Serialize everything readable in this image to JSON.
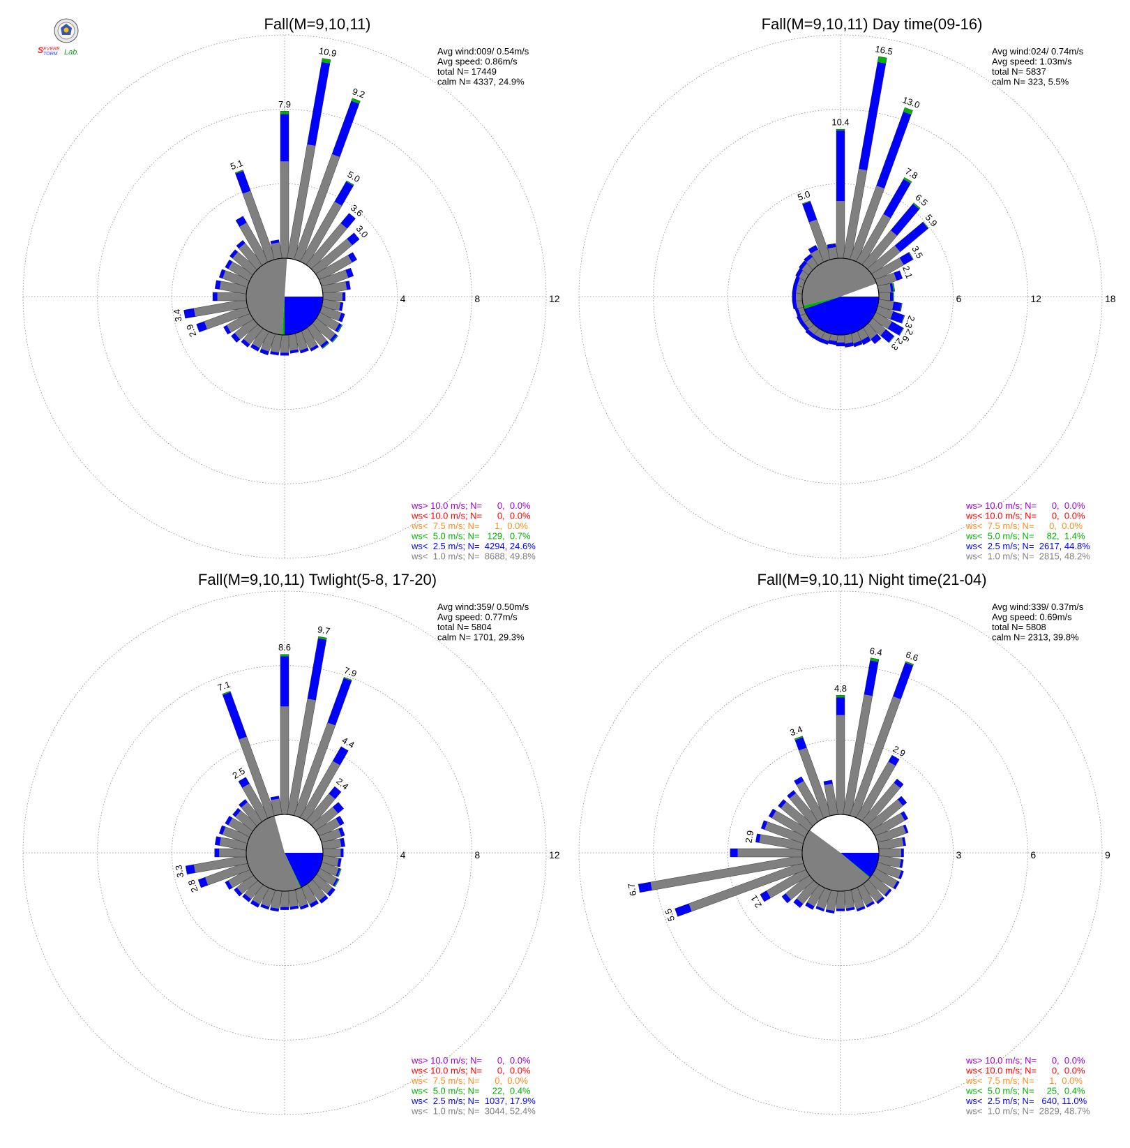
{
  "logo": {
    "lettering": "Severe Storm Lab."
  },
  "colors": {
    "ws_gt_10": "#9b00d8",
    "ws_lt_10": "#ff0000",
    "ws_lt_7_5": "#ff8c1a",
    "ws_lt_5": "#00b400",
    "ws_lt_2_5": "#0000ff",
    "ws_lt_1": "#808080"
  },
  "chart_data": [
    {
      "type": "windrose",
      "title": "Fall(M=9,10,11)",
      "rlim": [
        0,
        12
      ],
      "ring_labels": [
        "4",
        "8",
        "12"
      ],
      "stats": [
        "Avg wind:009/ 0.54m/s",
        "Avg speed: 0.86m/s",
        "total N=       17449",
        "calm N=    4337,  24.9%"
      ],
      "legend": [
        "ws> 10.0 m/s; N=      0,  0.0%",
        "ws< 10.0 m/s; N=      0,  0.0%",
        "ws<  7.5 m/s; N=      1,  0.0%",
        "ws<  5.0 m/s; N=   129,  0.7%",
        "ws<  2.5 m/s; N=  4294, 24.6%",
        "ws<  1.0 m/s; N=  8688, 49.8%"
      ],
      "calm_share": {
        "gray": 0.5,
        "blue": 0.25,
        "green": 0.01
      },
      "directions": [
        0,
        10,
        20,
        30,
        40,
        50,
        60,
        70,
        80,
        90,
        100,
        110,
        120,
        130,
        140,
        150,
        160,
        170,
        180,
        190,
        200,
        210,
        220,
        230,
        240,
        250,
        260,
        270,
        280,
        290,
        300,
        310,
        320,
        330,
        340,
        350
      ],
      "totals": [
        7.9,
        10.9,
        9.2,
        5.0,
        3.6,
        3.0,
        2.3,
        1.8,
        1.5,
        1.2,
        1.1,
        1.3,
        1.4,
        1.5,
        1.4,
        1.2,
        1.1,
        1.0,
        1.1,
        1.1,
        1.2,
        1.2,
        1.3,
        1.5,
        1.6,
        2.9,
        3.4,
        1.8,
        1.7,
        1.6,
        1.5,
        1.6,
        1.7,
        2.8,
        5.1,
        1.0
      ],
      "gray": [
        5.2,
        6.2,
        6.0,
        3.7,
        2.9,
        2.5,
        2.0,
        1.5,
        1.3,
        1.05,
        0.95,
        1.1,
        1.2,
        1.3,
        1.2,
        1.05,
        0.95,
        0.85,
        0.95,
        0.95,
        1.0,
        1.0,
        1.1,
        1.25,
        1.4,
        2.45,
        2.85,
        1.55,
        1.45,
        1.4,
        1.3,
        1.4,
        1.5,
        2.4,
        3.9,
        0.85
      ],
      "green": [
        0.15,
        0.2,
        0.15,
        0.05,
        0,
        0,
        0,
        0,
        0,
        0,
        0,
        0,
        0.05,
        0.05,
        0.05,
        0,
        0,
        0,
        0,
        0,
        0,
        0,
        0,
        0,
        0,
        0,
        0,
        0,
        0,
        0,
        0,
        0,
        0,
        0,
        0.05,
        0
      ],
      "labels": [
        {
          "dir": 0,
          "text": "7.9"
        },
        {
          "dir": 10,
          "text": "10.9"
        },
        {
          "dir": 20,
          "text": "9.2"
        },
        {
          "dir": 30,
          "text": "5.0"
        },
        {
          "dir": 40,
          "text": "3.6"
        },
        {
          "dir": 50,
          "text": "3.0"
        },
        {
          "dir": 250,
          "text": "2.9"
        },
        {
          "dir": 260,
          "text": "3.4"
        },
        {
          "dir": 340,
          "text": "5.1"
        }
      ]
    },
    {
      "type": "windrose",
      "title": "Fall(M=9,10,11) Day time(09-16)",
      "rlim": [
        0,
        18
      ],
      "ring_labels": [
        "6",
        "12",
        "18"
      ],
      "stats": [
        "Avg wind:024/ 0.74m/s",
        "Avg speed: 1.03m/s",
        "total N=        5837",
        "calm N=     323,   5.5%"
      ],
      "legend": [
        "ws> 10.0 m/s; N=      0,  0.0%",
        "ws< 10.0 m/s; N=      0,  0.0%",
        "ws<  7.5 m/s; N=      0,  0.0%",
        "ws<  5.0 m/s; N=     82,  1.4%",
        "ws<  2.5 m/s; N=  2617, 44.8%",
        "ws<  1.0 m/s; N=  2815, 48.2%"
      ],
      "calm_share": {
        "gray": 0.482,
        "blue": 0.448,
        "green": 0.014
      },
      "directions": [
        0,
        10,
        20,
        30,
        40,
        50,
        60,
        70,
        80,
        90,
        100,
        110,
        120,
        130,
        140,
        150,
        160,
        170,
        180,
        190,
        200,
        210,
        220,
        230,
        240,
        250,
        260,
        270,
        280,
        290,
        300,
        310,
        320,
        330,
        340,
        350
      ],
      "totals": [
        10.4,
        16.5,
        13.0,
        7.8,
        6.5,
        5.9,
        3.5,
        2.1,
        1.3,
        1.2,
        1.9,
        2.3,
        2.6,
        2.3,
        1.6,
        1.2,
        1.1,
        1.0,
        0.9,
        0.8,
        0.9,
        0.9,
        0.9,
        0.8,
        0.8,
        0.7,
        0.8,
        0.8,
        0.8,
        0.8,
        0.9,
        1.0,
        1.1,
        1.5,
        5.0,
        1.2
      ],
      "gray": [
        4.6,
        7.3,
        6.3,
        4.4,
        3.6,
        2.9,
        2.6,
        1.6,
        1.0,
        0.9,
        1.2,
        1.3,
        1.5,
        1.4,
        1.1,
        0.8,
        0.8,
        0.7,
        0.6,
        0.5,
        0.6,
        0.6,
        0.6,
        0.5,
        0.5,
        0.45,
        0.5,
        0.5,
        0.5,
        0.5,
        0.6,
        0.7,
        0.8,
        1.1,
        3.4,
        0.9
      ],
      "green": [
        0.1,
        0.45,
        0.35,
        0.15,
        0.1,
        0.05,
        0.05,
        0,
        0.1,
        0.05,
        0.05,
        0.05,
        0.05,
        0.05,
        0,
        0,
        0,
        0,
        0,
        0,
        0,
        0,
        0,
        0,
        0,
        0,
        0,
        0,
        0,
        0,
        0,
        0,
        0,
        0,
        0.05,
        0
      ],
      "labels": [
        {
          "dir": 0,
          "text": "10.4"
        },
        {
          "dir": 10,
          "text": "16.5"
        },
        {
          "dir": 20,
          "text": "13.0"
        },
        {
          "dir": 30,
          "text": "7.8"
        },
        {
          "dir": 40,
          "text": "6.5"
        },
        {
          "dir": 50,
          "text": "5.9"
        },
        {
          "dir": 60,
          "text": "3.5"
        },
        {
          "dir": 70,
          "text": "2.1"
        },
        {
          "dir": 110,
          "text": "2.3"
        },
        {
          "dir": 120,
          "text": "2.6"
        },
        {
          "dir": 130,
          "text": "2.3"
        },
        {
          "dir": 340,
          "text": "5.0"
        }
      ]
    },
    {
      "type": "windrose",
      "title": "Fall(M=9,10,11) Twlight(5-8, 17-20)",
      "rlim": [
        0,
        12
      ],
      "ring_labels": [
        "4",
        "8",
        "12"
      ],
      "stats": [
        "Avg wind:359/ 0.50m/s",
        "Avg speed: 0.77m/s",
        "total N=        5804",
        "calm N=    1701,  29.3%"
      ],
      "legend": [
        "ws> 10.0 m/s; N=      0,  0.0%",
        "ws< 10.0 m/s; N=      0,  0.0%",
        "ws<  7.5 m/s; N=      0,  0.0%",
        "ws<  5.0 m/s; N=     22,  0.4%",
        "ws<  2.5 m/s; N=  1037, 17.9%",
        "ws<  1.0 m/s; N=  3044, 52.4%"
      ],
      "calm_share": {
        "gray": 0.524,
        "blue": 0.179,
        "green": 0.004
      },
      "directions": [
        0,
        10,
        20,
        30,
        40,
        50,
        60,
        70,
        80,
        90,
        100,
        110,
        120,
        130,
        140,
        150,
        160,
        170,
        180,
        190,
        200,
        210,
        220,
        230,
        240,
        250,
        260,
        270,
        280,
        290,
        300,
        310,
        320,
        330,
        340,
        350
      ],
      "totals": [
        8.6,
        9.7,
        7.9,
        4.4,
        2.4,
        1.9,
        1.5,
        1.3,
        1.2,
        1.1,
        1.0,
        1.1,
        1.2,
        1.3,
        1.3,
        1.2,
        1.1,
        1.0,
        1.0,
        1.1,
        1.1,
        1.2,
        1.2,
        1.3,
        1.5,
        2.8,
        3.3,
        1.7,
        1.7,
        1.6,
        1.5,
        1.4,
        1.5,
        2.5,
        7.1,
        1.0
      ],
      "gray": [
        5.8,
        6.3,
        5.3,
        3.5,
        1.9,
        1.5,
        1.25,
        1.1,
        1.0,
        0.95,
        0.85,
        0.95,
        1.05,
        1.1,
        1.1,
        1.0,
        0.95,
        0.85,
        0.85,
        0.95,
        0.95,
        1.0,
        1.0,
        1.1,
        1.3,
        2.4,
        2.85,
        1.45,
        1.45,
        1.4,
        1.3,
        1.2,
        1.3,
        2.1,
        4.5,
        0.85
      ],
      "green": [
        0.1,
        0.1,
        0.05,
        0,
        0,
        0,
        0,
        0,
        0,
        0,
        0,
        0.05,
        0.05,
        0,
        0,
        0,
        0,
        0,
        0,
        0,
        0,
        0,
        0,
        0,
        0,
        0,
        0,
        0,
        0,
        0,
        0,
        0,
        0,
        0,
        0.05,
        0
      ],
      "labels": [
        {
          "dir": 0,
          "text": "8.6"
        },
        {
          "dir": 10,
          "text": "9.7"
        },
        {
          "dir": 20,
          "text": "7.9"
        },
        {
          "dir": 30,
          "text": "4.4"
        },
        {
          "dir": 40,
          "text": "2.4"
        },
        {
          "dir": 250,
          "text": "2.8"
        },
        {
          "dir": 260,
          "text": "3.3"
        },
        {
          "dir": 330,
          "text": "2.5"
        },
        {
          "dir": 340,
          "text": "7.1"
        }
      ]
    },
    {
      "type": "windrose",
      "title": "Fall(M=9,10,11) Night time(21-04)",
      "rlim": [
        0,
        9
      ],
      "ring_labels": [
        "3",
        "6",
        "9"
      ],
      "stats": [
        "Avg wind:339/ 0.37m/s",
        "Avg speed: 0.69m/s",
        "total N=        5808",
        "calm N=    2313,  39.8%"
      ],
      "legend": [
        "ws> 10.0 m/s; N=      0,  0.0%",
        "ws< 10.0 m/s; N=      0,  0.0%",
        "ws<  7.5 m/s; N=      1,  0.0%",
        "ws<  5.0 m/s; N=     25,  0.4%",
        "ws<  2.5 m/s; N=   640, 11.0%",
        "ws<  1.0 m/s; N=  2829, 48.7%"
      ],
      "calm_share": {
        "gray": 0.487,
        "blue": 0.11,
        "green": 0.004
      },
      "directions": [
        0,
        10,
        20,
        30,
        40,
        50,
        60,
        70,
        80,
        90,
        100,
        110,
        120,
        130,
        140,
        150,
        160,
        170,
        180,
        190,
        200,
        210,
        220,
        230,
        240,
        250,
        260,
        270,
        280,
        290,
        300,
        310,
        320,
        330,
        340,
        350
      ],
      "totals": [
        4.8,
        6.4,
        6.6,
        2.9,
        2.2,
        1.8,
        1.5,
        1.3,
        1.1,
        1.0,
        1.0,
        1.1,
        1.1,
        1.0,
        1.0,
        0.9,
        0.9,
        0.8,
        0.8,
        0.9,
        0.9,
        1.0,
        1.2,
        1.4,
        2.1,
        5.5,
        6.7,
        2.9,
        1.9,
        1.8,
        1.7,
        1.6,
        1.6,
        1.9,
        3.4,
        1.4
      ],
      "gray": [
        4.0,
        4.9,
        5.1,
        2.6,
        2.0,
        1.6,
        1.35,
        1.2,
        1.0,
        0.9,
        0.9,
        1.0,
        1.0,
        0.9,
        0.9,
        0.8,
        0.8,
        0.7,
        0.7,
        0.8,
        0.8,
        0.85,
        1.0,
        1.2,
        1.8,
        4.9,
        6.2,
        2.6,
        1.75,
        1.65,
        1.55,
        1.45,
        1.45,
        1.7,
        2.9,
        1.25
      ],
      "green": [
        0.08,
        0.1,
        0.05,
        0,
        0,
        0,
        0,
        0,
        0,
        0,
        0,
        0,
        0,
        0,
        0,
        0,
        0,
        0,
        0,
        0,
        0,
        0,
        0,
        0,
        0,
        0,
        0,
        0,
        0,
        0,
        0,
        0,
        0,
        0,
        0.05,
        0
      ],
      "labels": [
        {
          "dir": 0,
          "text": "4.8"
        },
        {
          "dir": 10,
          "text": "6.4"
        },
        {
          "dir": 20,
          "text": "6.6"
        },
        {
          "dir": 30,
          "text": "2.9"
        },
        {
          "dir": 240,
          "text": "2.1"
        },
        {
          "dir": 250,
          "text": "5.5"
        },
        {
          "dir": 260,
          "text": "6.7"
        },
        {
          "dir": 280,
          "text": "2.9"
        },
        {
          "dir": 340,
          "text": "3.4"
        }
      ]
    }
  ]
}
